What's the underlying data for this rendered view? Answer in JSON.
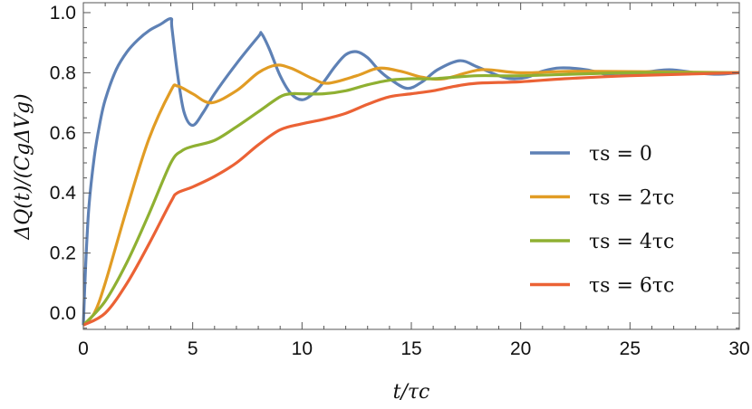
{
  "chart_data": {
    "type": "line",
    "xlabel": "t/τc",
    "ylabel": "ΔQ(t)/(CgΔVg)",
    "xlim": [
      0,
      30
    ],
    "ylim": [
      -0.054,
      1.033
    ],
    "xticks": [
      "0",
      "5",
      "10",
      "15",
      "20",
      "25",
      "30"
    ],
    "yticks": [
      "0.0",
      "0.2",
      "0.4",
      "0.6",
      "0.8",
      "1.0"
    ],
    "grid": false,
    "legend_position": "center-right",
    "series": [
      {
        "name": "τs = 0",
        "color": "#5E81B5",
        "x": [
          0,
          0.1,
          0.25,
          0.5,
          0.75,
          1,
          1.5,
          2,
          2.5,
          3,
          3.5,
          4,
          4.05,
          4.3,
          4.6,
          5,
          5.5,
          6,
          7,
          8,
          8.15,
          8.5,
          9,
          9.5,
          10,
          10.5,
          11,
          11.5,
          12,
          12.5,
          13,
          13.5,
          14,
          14.8,
          15.5,
          16.2,
          17.2,
          18,
          19,
          19.6,
          20.3,
          21,
          21.8,
          23,
          24.3,
          25.5,
          26.8,
          28,
          29,
          30
        ],
        "y": [
          -0.04,
          0.15,
          0.35,
          0.52,
          0.63,
          0.71,
          0.81,
          0.87,
          0.91,
          0.94,
          0.96,
          0.98,
          0.95,
          0.8,
          0.67,
          0.625,
          0.67,
          0.73,
          0.83,
          0.92,
          0.93,
          0.88,
          0.79,
          0.73,
          0.71,
          0.73,
          0.77,
          0.82,
          0.86,
          0.87,
          0.85,
          0.81,
          0.78,
          0.748,
          0.77,
          0.81,
          0.84,
          0.82,
          0.79,
          0.78,
          0.785,
          0.805,
          0.816,
          0.81,
          0.79,
          0.8,
          0.81,
          0.8,
          0.795,
          0.8
        ]
      },
      {
        "name": "τs = 2τc",
        "color": "#E19C24",
        "x": [
          0,
          0.5,
          1,
          2,
          3,
          4,
          4.3,
          5,
          5.85,
          7,
          8,
          8.8,
          9.5,
          10.5,
          11.2,
          12.5,
          13.5,
          14.5,
          15.5,
          16.5,
          18.2,
          20,
          23,
          30
        ],
        "y": [
          -0.04,
          0.0,
          0.1,
          0.35,
          0.58,
          0.74,
          0.756,
          0.73,
          0.7,
          0.74,
          0.8,
          0.825,
          0.815,
          0.78,
          0.765,
          0.79,
          0.815,
          0.805,
          0.785,
          0.78,
          0.81,
          0.8,
          0.805,
          0.8
        ]
      },
      {
        "name": "τs = 4τc",
        "color": "#8FB032",
        "x": [
          0,
          1,
          2,
          3,
          4,
          4.5,
          5,
          6,
          7,
          8,
          9,
          9.5,
          10,
          11,
          12,
          13,
          14,
          15,
          16,
          18,
          20,
          25,
          30
        ],
        "y": [
          -0.04,
          0.04,
          0.17,
          0.33,
          0.5,
          0.54,
          0.555,
          0.575,
          0.62,
          0.67,
          0.72,
          0.73,
          0.73,
          0.73,
          0.74,
          0.76,
          0.775,
          0.78,
          0.78,
          0.79,
          0.79,
          0.8,
          0.8
        ]
      },
      {
        "name": "τs = 6τc",
        "color": "#EB6235",
        "x": [
          0,
          1,
          2,
          3,
          4,
          4.3,
          5,
          6,
          7,
          8,
          9,
          10,
          11,
          12,
          13,
          14,
          15,
          16,
          17,
          18,
          20,
          22,
          25,
          30
        ],
        "y": [
          -0.04,
          0.0,
          0.1,
          0.23,
          0.37,
          0.4,
          0.42,
          0.455,
          0.5,
          0.56,
          0.61,
          0.63,
          0.645,
          0.665,
          0.695,
          0.72,
          0.73,
          0.74,
          0.755,
          0.765,
          0.77,
          0.78,
          0.79,
          0.8
        ]
      }
    ]
  }
}
